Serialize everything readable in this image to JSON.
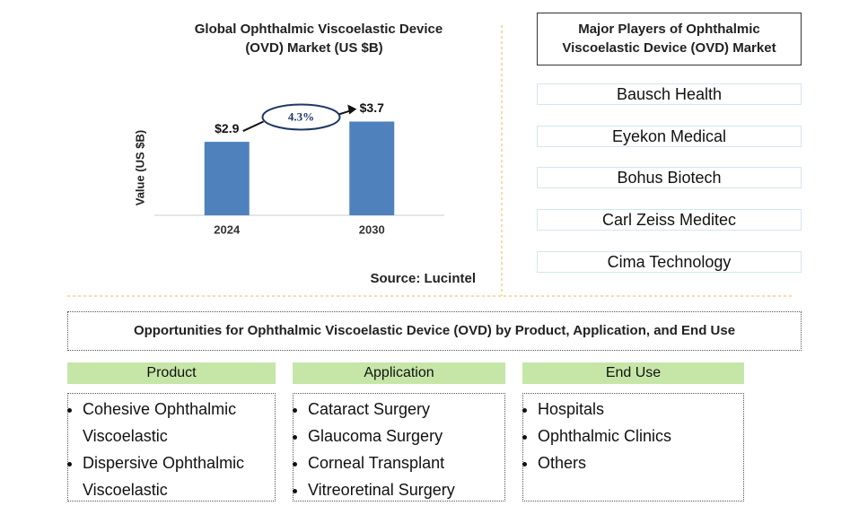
{
  "chart_data": {
    "type": "bar",
    "title": "Global Ophthalmic Viscoelastic Device (OVD) Market (US $B)",
    "y_label": "Value (US $B)",
    "categories": [
      "2024",
      "2030"
    ],
    "values": [
      2.9,
      3.7
    ],
    "value_labels": [
      "$2.9",
      "$3.7"
    ],
    "color": "#4f81bd",
    "ylim": [
      0,
      4
    ],
    "annotation": "4.3%",
    "source": "Source: Lucintel"
  },
  "players": {
    "title": "Major Players of Ophthalmic Viscoelastic Device (OVD) Market",
    "items": [
      "Bausch Health",
      "Eyekon Medical",
      "Bohus Biotech",
      "Carl Zeiss Meditec",
      "Cima Technology"
    ]
  },
  "opportunities": {
    "title": "Opportunities for Ophthalmic Viscoelastic Device (OVD) by Product, Application, and End Use",
    "columns": [
      {
        "header": "Product",
        "items": [
          "Cohesive Ophthalmic Viscoelastic",
          "Dispersive Ophthalmic Viscoelastic"
        ]
      },
      {
        "header": "Application",
        "items": [
          "Cataract Surgery",
          "Glaucoma Surgery",
          "Corneal Transplant",
          "Vitreoretinal Surgery"
        ]
      },
      {
        "header": "End Use",
        "items": [
          "Hospitals",
          "Ophthalmic Clinics",
          "Others"
        ]
      }
    ]
  }
}
